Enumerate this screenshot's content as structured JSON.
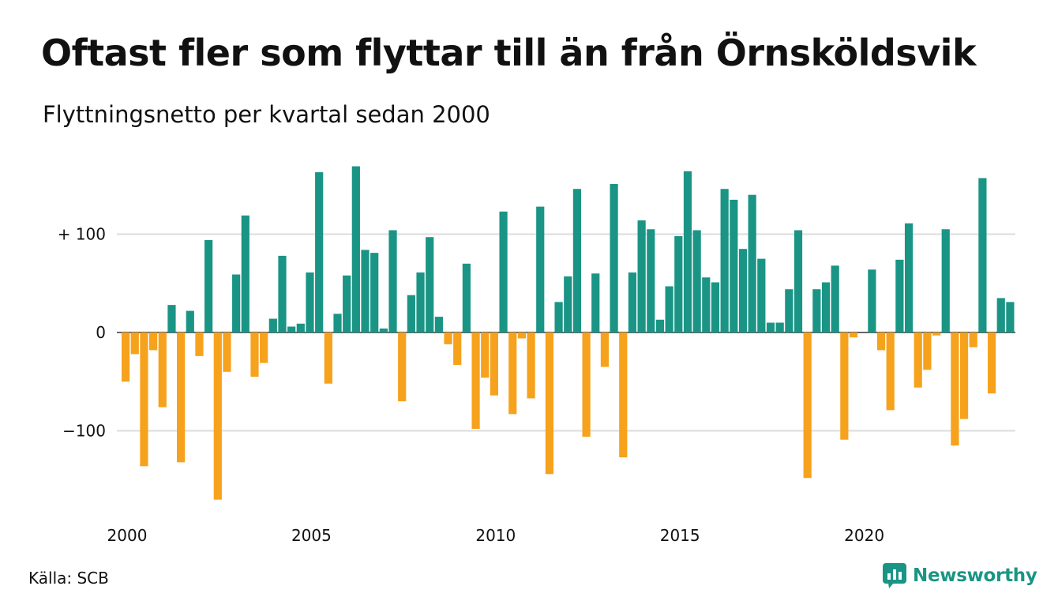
{
  "title": "Oftast fler som flyttar till än från Örnsköldsvik",
  "subtitle": "Flyttningsnetto per kvartal sedan 2000",
  "source": "Källa: SCB",
  "brand": {
    "name": "Newsworthy",
    "icon": "newsworthy-logo-icon"
  },
  "colors": {
    "positive": "#1a9585",
    "negative": "#f6a21d",
    "grid": "#dcdcdc",
    "baseline": "#333333",
    "brand": "#1a9585"
  },
  "chart_data": {
    "type": "bar",
    "title": "Oftast fler som flyttar till än från Örnsköldsvik",
    "subtitle": "Flyttningsnetto per kvartal sedan 2000",
    "xlabel": "",
    "ylabel": "",
    "start": {
      "year": 2000,
      "quarter": 1
    },
    "x_ticks": [
      "2000",
      "2005",
      "2010",
      "2015",
      "2020"
    ],
    "y_ticks": [
      {
        "value": 100,
        "label": "+ 100"
      },
      {
        "value": 0,
        "label": "0"
      },
      {
        "value": -100,
        "label": "−100"
      }
    ],
    "ylim": [
      -180,
      180
    ],
    "grid": true,
    "legend": "none",
    "values": [
      -50,
      -22,
      -136,
      -18,
      -76,
      28,
      -132,
      22,
      -24,
      94,
      -170,
      -40,
      59,
      119,
      -45,
      -31,
      14,
      78,
      6,
      9,
      61,
      163,
      -52,
      19,
      58,
      169,
      84,
      81,
      4,
      104,
      -70,
      38,
      61,
      97,
      16,
      -12,
      -33,
      70,
      -98,
      -46,
      -64,
      123,
      -83,
      -6,
      -67,
      128,
      -144,
      31,
      57,
      146,
      -106,
      60,
      -35,
      151,
      -127,
      61,
      114,
      105,
      13,
      47,
      98,
      164,
      104,
      56,
      51,
      146,
      135,
      85,
      140,
      75,
      10,
      10,
      44,
      104,
      -148,
      44,
      51,
      68,
      -109,
      -5,
      0,
      64,
      -18,
      -79,
      74,
      111,
      -56,
      -38,
      -3,
      105,
      -115,
      -88,
      -15,
      157,
      -62,
      35,
      31
    ]
  }
}
